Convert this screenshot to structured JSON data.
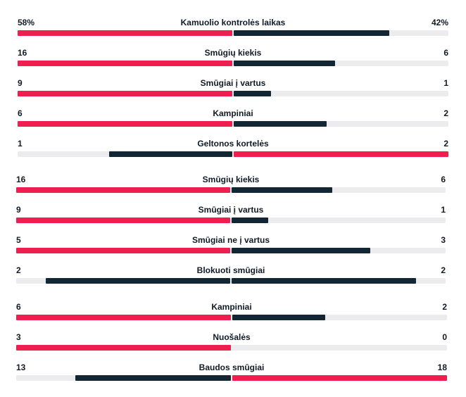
{
  "colors": {
    "leader": "#ee1f4f",
    "trailer": "#132633",
    "track": "#ececef"
  },
  "scale": 0.43,
  "sections": [
    {
      "name": "summary",
      "rows": [
        {
          "label": "Kamuolio kontrolės laikas",
          "home": "58%",
          "away": "42%",
          "home_num": 58,
          "away_num": 42
        },
        {
          "label": "Smūgių kiekis",
          "home": "16",
          "away": "6",
          "home_num": 16,
          "away_num": 6
        },
        {
          "label": "Smūgiai į vartus",
          "home": "9",
          "away": "1",
          "home_num": 9,
          "away_num": 1
        },
        {
          "label": "Kampiniai",
          "home": "6",
          "away": "2",
          "home_num": 6,
          "away_num": 2
        },
        {
          "label": "Geltonos kortelės",
          "home": "1",
          "away": "2",
          "home_num": 1,
          "away_num": 2
        }
      ]
    },
    {
      "name": "shots",
      "rows": [
        {
          "label": "Smūgių kiekis",
          "home": "16",
          "away": "6",
          "home_num": 16,
          "away_num": 6
        },
        {
          "label": "Smūgiai į vartus",
          "home": "9",
          "away": "1",
          "home_num": 9,
          "away_num": 1
        },
        {
          "label": "Smūgiai ne į vartus",
          "home": "5",
          "away": "3",
          "home_num": 5,
          "away_num": 3
        },
        {
          "label": "Blokuoti smūgiai",
          "home": "2",
          "away": "2",
          "home_num": 2,
          "away_num": 2
        }
      ]
    },
    {
      "name": "other",
      "rows": [
        {
          "label": "Kampiniai",
          "home": "6",
          "away": "2",
          "home_num": 6,
          "away_num": 2
        },
        {
          "label": "Nuošalės",
          "home": "3",
          "away": "0",
          "home_num": 3,
          "away_num": 0
        },
        {
          "label": "Baudos smūgiai",
          "home": "13",
          "away": "18",
          "home_num": 13,
          "away_num": 18
        }
      ]
    }
  ]
}
